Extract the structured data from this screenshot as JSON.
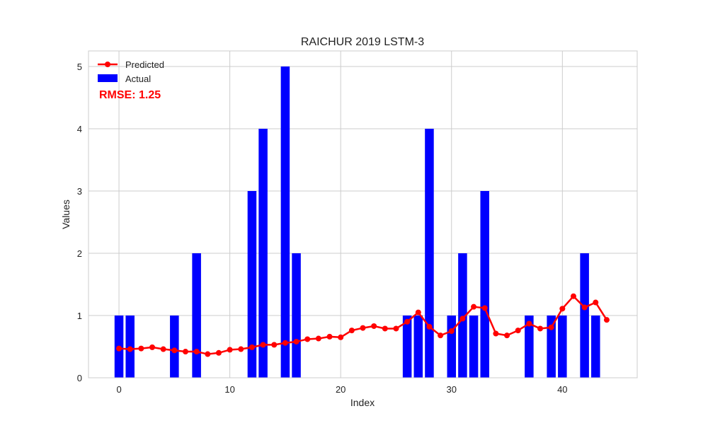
{
  "chart_data": {
    "type": "bar",
    "title": "RAICHUR 2019 LSTM-3",
    "xlabel": "Index",
    "ylabel": "Values",
    "xlim": [
      -2.75,
      46.75
    ],
    "ylim": [
      0,
      5.25
    ],
    "xticks": [
      0,
      10,
      20,
      30,
      40
    ],
    "yticks": [
      0,
      1,
      2,
      3,
      4,
      5
    ],
    "grid": true,
    "legend_position": "top-left",
    "annotation": "RMSE: 1.25",
    "annotation_color": "#ff0000",
    "series": [
      {
        "name": "Predicted",
        "type": "line",
        "marker": "circle",
        "color": "#ff0000",
        "x": [
          0,
          1,
          2,
          3,
          4,
          5,
          6,
          7,
          8,
          9,
          10,
          11,
          12,
          13,
          14,
          15,
          16,
          17,
          18,
          19,
          20,
          21,
          22,
          23,
          24,
          25,
          26,
          27,
          28,
          29,
          30,
          31,
          32,
          33,
          34,
          35,
          36,
          37,
          38,
          39,
          40,
          41,
          42,
          43,
          44
        ],
        "values": [
          0.47,
          0.46,
          0.47,
          0.49,
          0.46,
          0.44,
          0.42,
          0.42,
          0.38,
          0.4,
          0.45,
          0.46,
          0.49,
          0.53,
          0.53,
          0.56,
          0.58,
          0.62,
          0.63,
          0.66,
          0.65,
          0.76,
          0.8,
          0.83,
          0.79,
          0.79,
          0.9,
          1.05,
          0.82,
          0.68,
          0.75,
          0.95,
          1.14,
          1.12,
          0.71,
          0.68,
          0.76,
          0.87,
          0.79,
          0.81,
          1.11,
          1.31,
          1.13,
          1.21,
          0.93
        ]
      },
      {
        "name": "Actual",
        "type": "bar",
        "color": "#0000ff",
        "x": [
          0,
          1,
          2,
          3,
          4,
          5,
          6,
          7,
          8,
          9,
          10,
          11,
          12,
          13,
          14,
          15,
          16,
          17,
          18,
          19,
          20,
          21,
          22,
          23,
          24,
          25,
          26,
          27,
          28,
          29,
          30,
          31,
          32,
          33,
          34,
          35,
          36,
          37,
          38,
          39,
          40,
          41,
          42,
          43,
          44
        ],
        "values": [
          1,
          1,
          0,
          0,
          0,
          1,
          0,
          2,
          0,
          0,
          0,
          0,
          3,
          4,
          0,
          5,
          2,
          0,
          0,
          0,
          0,
          0,
          0,
          0,
          0,
          0,
          1,
          1,
          4,
          0,
          1,
          2,
          1,
          3,
          0,
          0,
          0,
          1,
          0,
          1,
          1,
          0,
          2,
          1,
          0
        ]
      }
    ]
  }
}
